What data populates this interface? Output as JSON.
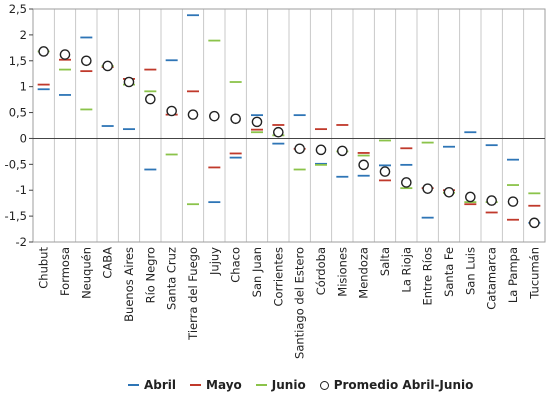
{
  "chart_data": {
    "type": "scatter",
    "title": "",
    "xlabel": "",
    "ylabel": "",
    "ylim": [
      -2,
      2.5
    ],
    "yticks": [
      "2,5",
      "2",
      "1,5",
      "1",
      "0,5",
      "0",
      "-0,5",
      "-1",
      "-1,5",
      "-2"
    ],
    "grid": "vertical separators between categories, no horizontal gridlines",
    "legend_position": "bottom",
    "categories": [
      "Chubut",
      "Formosa",
      "Neuquén",
      "CABA",
      "Buenos Aires",
      "Río Negro",
      "Santa Cruz",
      "Tierra del Fuego",
      "Jujuy",
      "Chaco",
      "San Juan",
      "Corrientes",
      "Santiago del Estero",
      "Córdoba",
      "Misiones",
      "Mendoza",
      "Salta",
      "La Rioja",
      "Entre Ríos",
      "Santa Fe",
      "San Luis",
      "Catamarca",
      "La Pampa",
      "Tucumán"
    ],
    "series": [
      {
        "name": "Abril",
        "marker": "dash",
        "color": "#2e75b6",
        "values": [
          0.95,
          0.84,
          1.95,
          0.24,
          0.18,
          -0.6,
          1.51,
          2.38,
          -1.23,
          -0.37,
          0.45,
          -0.1,
          0.45,
          -0.49,
          -0.74,
          -0.72,
          -0.52,
          -0.51,
          -1.53,
          -0.16,
          0.12,
          -0.13,
          -0.41,
          -1.63
        ]
      },
      {
        "name": "Mayo",
        "marker": "dash",
        "color": "#c0392b",
        "values": [
          1.04,
          1.52,
          1.3,
          1.38,
          1.15,
          1.33,
          0.46,
          0.91,
          -0.56,
          -0.29,
          0.17,
          0.26,
          -0.2,
          0.18,
          0.26,
          -0.28,
          -0.81,
          -0.19,
          -0.96,
          -1.0,
          -1.27,
          -1.43,
          -1.57,
          -1.3
        ]
      },
      {
        "name": "Junio",
        "marker": "dash",
        "color": "#8bc34a",
        "values": [
          1.68,
          1.33,
          0.56,
          1.4,
          1.04,
          0.91,
          -0.31,
          -1.27,
          1.89,
          1.09,
          0.12,
          0.06,
          -0.6,
          -0.51,
          -0.25,
          -0.33,
          -0.04,
          -0.96,
          -0.08,
          -1.05,
          -1.23,
          -1.23,
          -0.9,
          -1.06
        ]
      },
      {
        "name": "Promedio Abril-Junio",
        "marker": "circle",
        "color": "#222222",
        "values": [
          1.68,
          1.62,
          1.5,
          1.4,
          1.09,
          0.76,
          0.53,
          0.46,
          0.43,
          0.38,
          0.32,
          0.12,
          -0.2,
          -0.22,
          -0.24,
          -0.51,
          -0.64,
          -0.85,
          -0.97,
          -1.04,
          -1.13,
          -1.2,
          -1.22,
          -1.63
        ]
      }
    ]
  }
}
